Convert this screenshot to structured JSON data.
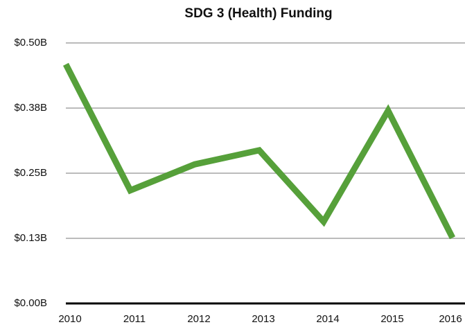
{
  "chart_data": {
    "type": "line",
    "title": "SDG 3 (Health) Funding",
    "categories": [
      "2010",
      "2011",
      "2012",
      "2013",
      "2014",
      "2015",
      "2016"
    ],
    "series": [
      {
        "name": "SDG 3 (Health) Funding",
        "color": "#56a03a",
        "values": [
          0.459,
          0.217,
          0.267,
          0.294,
          0.157,
          0.37,
          0.126
        ]
      }
    ],
    "ylim": [
      0,
      0.5
    ],
    "yticks": [
      {
        "value": 0,
        "label": "$0.00B"
      },
      {
        "value": 0.125,
        "label": "$0.13B"
      },
      {
        "value": 0.25,
        "label": "$0.25B"
      },
      {
        "value": 0.375,
        "label": "$0.38B"
      },
      {
        "value": 0.5,
        "label": "$0.50B"
      }
    ],
    "grid": true
  }
}
